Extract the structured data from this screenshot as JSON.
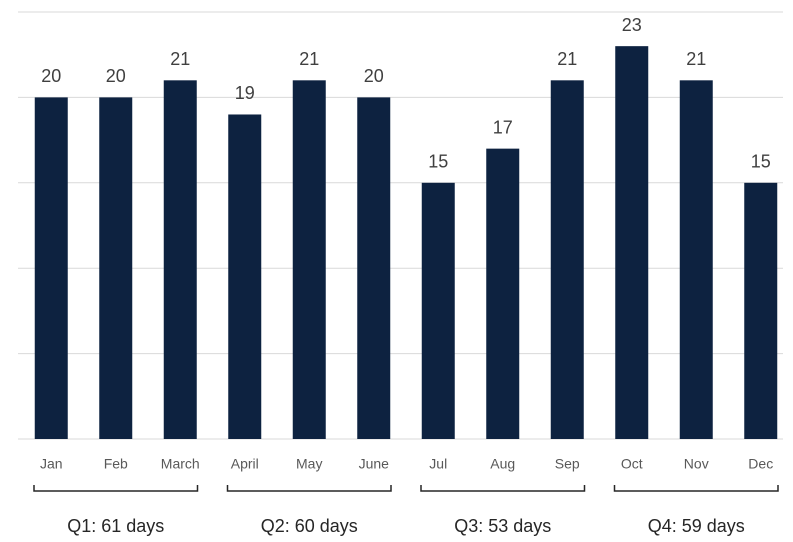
{
  "chart_data": {
    "type": "bar",
    "categories": [
      "Jan",
      "Feb",
      "March",
      "April",
      "May",
      "June",
      "Jul",
      "Aug",
      "Sep",
      "Oct",
      "Nov",
      "Dec"
    ],
    "values": [
      20,
      20,
      21,
      19,
      21,
      20,
      15,
      17,
      21,
      23,
      21,
      15
    ],
    "color": "#0d2240",
    "ylim": [
      0,
      25
    ],
    "yticks": [
      0,
      5,
      10,
      15,
      20,
      25
    ],
    "grid": true,
    "quarters": [
      "Q1: 61 days",
      "Q2: 60 days",
      "Q3: 53 days",
      "Q4: 59 days"
    ]
  }
}
